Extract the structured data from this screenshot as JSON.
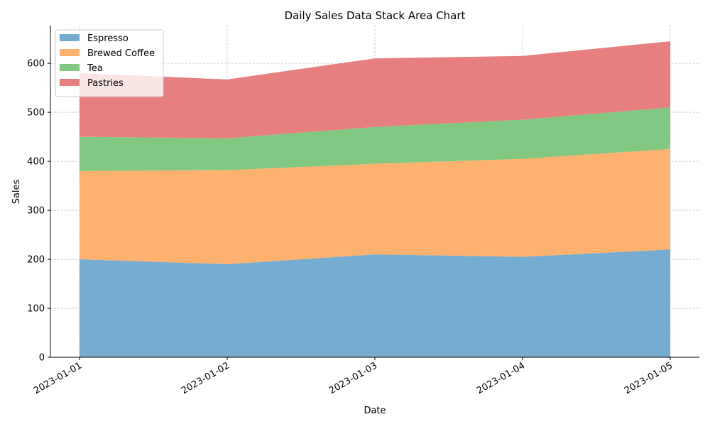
{
  "chart_data": {
    "type": "area",
    "stacked": true,
    "title": "Daily Sales Data Stack Area Chart",
    "xlabel": "Date",
    "ylabel": "Sales",
    "x": [
      "2023-01-01",
      "2023-01-02",
      "2023-01-03",
      "2023-01-04",
      "2023-01-05"
    ],
    "ylim": [
      0,
      677
    ],
    "yticks": [
      0,
      100,
      200,
      300,
      400,
      500,
      600
    ],
    "grid": true,
    "legend_position": "top-left",
    "series": [
      {
        "name": "Espresso",
        "color": "#77acd1",
        "values": [
          200,
          190,
          210,
          205,
          220
        ]
      },
      {
        "name": "Brewed Coffee",
        "color": "#ffb16f",
        "values": [
          180,
          192,
          185,
          200,
          205
        ]
      },
      {
        "name": "Tea",
        "color": "#82c782",
        "values": [
          70,
          65,
          75,
          80,
          85
        ]
      },
      {
        "name": "Pastries",
        "color": "#e77f7f",
        "values": [
          130,
          120,
          140,
          130,
          135
        ]
      }
    ]
  }
}
